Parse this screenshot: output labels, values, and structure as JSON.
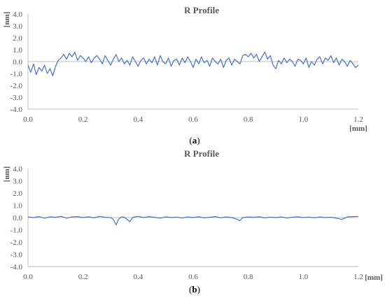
{
  "colors": {
    "line": "#4472c4",
    "axis": "#bfbfbf",
    "text": "#595959"
  },
  "chart_data": [
    {
      "type": "line",
      "title": "R Profile",
      "panel_label": {
        "open": "(",
        "letter": "a",
        "close": ")"
      },
      "xlabel": "[mm]",
      "ylabel": "[nm]",
      "xlim": [
        0,
        1.2
      ],
      "ylim": [
        -4,
        4
      ],
      "xticks": [
        "0.0",
        "0.2",
        "0.4",
        "0.6",
        "0.8",
        "1.0",
        "1.2"
      ],
      "yticks": [
        "4.0",
        "3.0",
        "2.0",
        "1.0",
        "0.0",
        "-1.0",
        "-2.0",
        "-3.0",
        "-4.0"
      ],
      "series": [
        {
          "x": [
            0.0,
            0.01,
            0.02,
            0.03,
            0.04,
            0.05,
            0.06,
            0.07,
            0.08,
            0.09,
            0.1,
            0.11,
            0.12,
            0.13,
            0.14,
            0.15,
            0.16,
            0.17,
            0.18,
            0.19,
            0.2,
            0.21,
            0.22,
            0.23,
            0.24,
            0.25,
            0.26,
            0.27,
            0.28,
            0.29,
            0.3,
            0.31,
            0.32,
            0.33,
            0.34,
            0.35,
            0.36,
            0.37,
            0.38,
            0.39,
            0.4,
            0.41,
            0.42,
            0.43,
            0.44,
            0.45,
            0.46,
            0.47,
            0.48,
            0.49,
            0.5,
            0.51,
            0.52,
            0.53,
            0.54,
            0.55,
            0.56,
            0.57,
            0.58,
            0.59,
            0.6,
            0.61,
            0.62,
            0.63,
            0.64,
            0.65,
            0.66,
            0.67,
            0.68,
            0.69,
            0.7,
            0.71,
            0.72,
            0.73,
            0.74,
            0.75,
            0.76,
            0.77,
            0.78,
            0.79,
            0.8,
            0.81,
            0.82,
            0.83,
            0.84,
            0.85,
            0.86,
            0.87,
            0.88,
            0.89,
            0.9,
            0.91,
            0.92,
            0.93,
            0.94,
            0.95,
            0.96,
            0.97,
            0.98,
            0.99,
            1.0,
            1.01,
            1.02,
            1.03,
            1.04,
            1.05,
            1.06,
            1.07,
            1.08,
            1.09,
            1.1,
            1.11,
            1.12,
            1.13,
            1.14,
            1.15,
            1.16,
            1.17,
            1.18,
            1.19,
            1.2
          ],
          "y": [
            -0.3,
            -0.9,
            -0.2,
            -1.1,
            -0.5,
            -0.8,
            -0.3,
            -1.0,
            -0.6,
            -1.2,
            -0.4,
            0.1,
            0.3,
            0.6,
            0.2,
            0.7,
            0.4,
            0.8,
            0.1,
            0.5,
            0.3,
            0.0,
            0.4,
            -0.1,
            0.3,
            0.5,
            0.2,
            -0.2,
            0.5,
            0.1,
            -0.3,
            0.2,
            0.6,
            0.0,
            0.3,
            -0.2,
            0.1,
            -0.3,
            0.4,
            0.0,
            -0.4,
            0.1,
            0.3,
            -0.2,
            0.2,
            -0.1,
            0.4,
            -0.3,
            0.5,
            0.0,
            -0.2,
            0.3,
            -0.4,
            0.1,
            0.2,
            -0.3,
            0.3,
            -0.1,
            0.4,
            0.0,
            -0.5,
            0.2,
            -0.2,
            0.4,
            -0.1,
            0.1,
            -0.4,
            0.3,
            0.0,
            -0.2,
            0.2,
            -0.5,
            0.1,
            0.3,
            -0.3,
            0.2,
            0.0,
            -0.2,
            0.5,
            0.6,
            0.4,
            0.7,
            0.3,
            0.6,
            0.0,
            0.4,
            0.8,
            0.2,
            0.5,
            -0.3,
            -0.6,
            0.1,
            -0.2,
            0.3,
            -0.1,
            0.2,
            0.0,
            -0.4,
            0.2,
            0.1,
            -0.2,
            0.3,
            -0.5,
            0.0,
            -0.3,
            0.2,
            0.4,
            -0.2,
            0.3,
            0.1,
            0.5,
            -0.1,
            0.3,
            -0.3,
            0.2,
            0.0,
            -0.4,
            0.1,
            -0.2,
            -0.5,
            -0.3
          ]
        }
      ]
    },
    {
      "type": "line",
      "title": "R Profile",
      "panel_label": {
        "open": "(",
        "letter": "b",
        "close": ")"
      },
      "xlabel": "[mm]",
      "ylabel": "[nm]",
      "xlim": [
        0,
        1.2
      ],
      "ylim": [
        -4,
        4
      ],
      "xticks": [
        "0.0",
        "0.2",
        "0.4",
        "0.6",
        "0.8",
        "1.0",
        "1.2"
      ],
      "yticks": [
        "4.0",
        "3.0",
        "2.0",
        "1.0",
        "0.0",
        "-1.0",
        "-2.0",
        "-3.0",
        "-4.0"
      ],
      "series": [
        {
          "x": [
            0.0,
            0.02,
            0.04,
            0.06,
            0.08,
            0.1,
            0.12,
            0.14,
            0.16,
            0.18,
            0.2,
            0.22,
            0.24,
            0.26,
            0.28,
            0.3,
            0.31,
            0.32,
            0.33,
            0.34,
            0.35,
            0.36,
            0.37,
            0.38,
            0.39,
            0.4,
            0.42,
            0.44,
            0.46,
            0.48,
            0.5,
            0.52,
            0.54,
            0.56,
            0.58,
            0.6,
            0.62,
            0.64,
            0.66,
            0.68,
            0.7,
            0.72,
            0.74,
            0.76,
            0.77,
            0.78,
            0.8,
            0.82,
            0.84,
            0.86,
            0.88,
            0.9,
            0.92,
            0.94,
            0.96,
            0.98,
            1.0,
            1.02,
            1.04,
            1.06,
            1.08,
            1.1,
            1.12,
            1.14,
            1.15,
            1.16,
            1.18,
            1.2
          ],
          "y": [
            0.05,
            0.0,
            0.08,
            -0.05,
            0.06,
            0.02,
            0.1,
            -0.05,
            0.05,
            0.08,
            0.0,
            0.06,
            -0.03,
            0.1,
            0.02,
            0.0,
            -0.15,
            -0.6,
            -0.1,
            0.05,
            0.02,
            -0.15,
            -0.35,
            0.0,
            0.06,
            0.1,
            0.0,
            0.08,
            0.02,
            -0.05,
            0.06,
            0.0,
            0.04,
            -0.04,
            0.05,
            0.0,
            0.06,
            -0.03,
            0.02,
            0.08,
            -0.02,
            0.05,
            0.0,
            -0.15,
            -0.25,
            0.0,
            0.05,
            0.02,
            0.06,
            -0.03,
            0.04,
            0.0,
            0.05,
            -0.04,
            0.03,
            0.06,
            0.0,
            0.04,
            -0.02,
            0.05,
            0.0,
            0.03,
            -0.05,
            -0.15,
            -0.05,
            0.05,
            0.08,
            0.1
          ]
        }
      ]
    }
  ]
}
